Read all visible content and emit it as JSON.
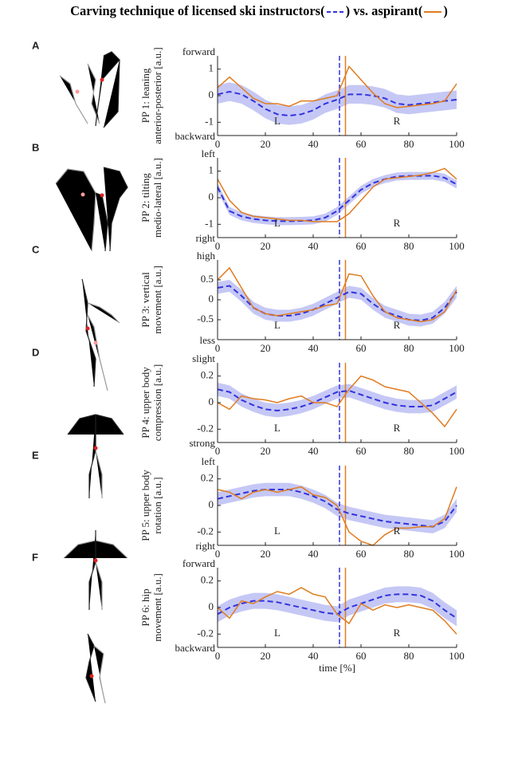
{
  "legend": {
    "prefix": "Carving technique of",
    "open": "(",
    "close": ")",
    "join": "vs.",
    "items": [
      {
        "name": "licensed ski instructors",
        "color": "#3333dd",
        "dash": true
      },
      {
        "name": "aspirant",
        "color": "#e07b1f",
        "dash": false
      }
    ]
  },
  "chart_data": [
    {
      "type": "line",
      "panel": "A",
      "ylabel": [
        "PP 1: leaning",
        "anterior-posterior [a.u.]"
      ],
      "top_label": "forward",
      "bottom_label": "backward",
      "phase_labels": [
        "L",
        "R"
      ],
      "x": [
        0,
        5,
        10,
        15,
        20,
        25,
        30,
        35,
        40,
        45,
        50,
        55,
        60,
        65,
        70,
        75,
        80,
        85,
        90,
        95,
        100
      ],
      "xlim": [
        0,
        100
      ],
      "xticks": [
        0,
        20,
        40,
        60,
        80,
        100
      ],
      "ylim": [
        -1.5,
        1.5
      ],
      "yticks": [
        -1,
        0,
        1
      ],
      "series": [
        {
          "color": "#3333dd",
          "dash": true,
          "switch": 51,
          "spread": 0.35,
          "values": [
            0.05,
            0.15,
            0.05,
            -0.2,
            -0.5,
            -0.7,
            -0.75,
            -0.7,
            -0.55,
            -0.3,
            -0.15,
            0.05,
            0.05,
            0.0,
            -0.1,
            -0.3,
            -0.35,
            -0.3,
            -0.25,
            -0.2,
            -0.15
          ]
        },
        {
          "color": "#e07b1f",
          "dash": false,
          "switch": 53.5,
          "values": [
            0.3,
            0.7,
            0.3,
            -0.1,
            -0.3,
            -0.3,
            -0.4,
            -0.2,
            -0.2,
            -0.1,
            0.0,
            1.1,
            0.6,
            0.1,
            -0.3,
            -0.45,
            -0.4,
            -0.35,
            -0.3,
            -0.2,
            0.45
          ]
        }
      ]
    },
    {
      "type": "line",
      "panel": "B",
      "ylabel": [
        "PP 2: tilting",
        "medio-lateral [a.u.]"
      ],
      "top_label": "left",
      "bottom_label": "right",
      "phase_labels": [
        "L",
        "R"
      ],
      "x": [
        0,
        5,
        10,
        15,
        20,
        25,
        30,
        35,
        40,
        45,
        50,
        55,
        60,
        65,
        70,
        75,
        80,
        85,
        90,
        95,
        100
      ],
      "xlim": [
        0,
        100
      ],
      "xticks": [
        0,
        20,
        40,
        60,
        80,
        100
      ],
      "ylim": [
        -1.5,
        1.5
      ],
      "yticks": [
        -1,
        0,
        1
      ],
      "series": [
        {
          "color": "#3333dd",
          "dash": true,
          "switch": 51,
          "spread": 0.15,
          "values": [
            0.4,
            -0.5,
            -0.7,
            -0.8,
            -0.85,
            -0.88,
            -0.88,
            -0.87,
            -0.85,
            -0.75,
            -0.5,
            -0.1,
            0.3,
            0.55,
            0.7,
            0.8,
            0.82,
            0.82,
            0.83,
            0.75,
            0.5
          ]
        },
        {
          "color": "#e07b1f",
          "dash": false,
          "switch": 53.5,
          "values": [
            0.7,
            -0.1,
            -0.55,
            -0.7,
            -0.75,
            -0.8,
            -0.85,
            -0.85,
            -0.9,
            -0.9,
            -0.9,
            -0.6,
            -0.1,
            0.4,
            0.7,
            0.75,
            0.8,
            0.85,
            0.95,
            1.1,
            0.7
          ]
        }
      ]
    },
    {
      "type": "line",
      "panel": "C",
      "ylabel": [
        "PP 3: vertical",
        "movement [a.u.]"
      ],
      "top_label": "high",
      "bottom_label": "less",
      "phase_labels": [
        "L",
        "R"
      ],
      "x": [
        0,
        5,
        10,
        15,
        20,
        25,
        30,
        35,
        40,
        45,
        50,
        55,
        60,
        65,
        70,
        75,
        80,
        85,
        90,
        95,
        100
      ],
      "xlim": [
        0,
        100
      ],
      "xticks": [
        0,
        20,
        40,
        60,
        80,
        100
      ],
      "ylim": [
        -1,
        1
      ],
      "yticks": [
        -0.5,
        0,
        0.5
      ],
      "series": [
        {
          "color": "#3333dd",
          "dash": true,
          "switch": 51,
          "spread": 0.15,
          "values": [
            0.3,
            0.35,
            0.1,
            -0.2,
            -0.35,
            -0.4,
            -0.4,
            -0.35,
            -0.25,
            -0.1,
            0.05,
            0.2,
            0.15,
            -0.1,
            -0.3,
            -0.4,
            -0.5,
            -0.52,
            -0.45,
            -0.2,
            0.2
          ]
        },
        {
          "color": "#e07b1f",
          "dash": false,
          "switch": 53.5,
          "values": [
            0.5,
            0.8,
            0.3,
            -0.2,
            -0.35,
            -0.4,
            -0.35,
            -0.3,
            -0.25,
            -0.15,
            -0.1,
            0.65,
            0.6,
            0.1,
            -0.3,
            -0.45,
            -0.5,
            -0.55,
            -0.5,
            -0.3,
            0.25
          ]
        }
      ]
    },
    {
      "type": "line",
      "panel": "D",
      "ylabel": [
        "PP 4: upper body",
        "compression [a.u.]"
      ],
      "top_label": "slight",
      "bottom_label": "strong",
      "phase_labels": [
        "L",
        "R"
      ],
      "x": [
        0,
        5,
        10,
        15,
        20,
        25,
        30,
        35,
        40,
        45,
        50,
        55,
        60,
        65,
        70,
        75,
        80,
        85,
        90,
        95,
        100
      ],
      "xlim": [
        0,
        100
      ],
      "xticks": [
        0,
        20,
        40,
        60,
        80,
        100
      ],
      "ylim": [
        -0.3,
        0.3
      ],
      "yticks": [
        -0.2,
        0,
        0.2
      ],
      "series": [
        {
          "color": "#3333dd",
          "dash": true,
          "switch": 51,
          "spread": 0.05,
          "values": [
            0.1,
            0.08,
            0.02,
            -0.02,
            -0.05,
            -0.06,
            -0.05,
            -0.03,
            0.0,
            0.04,
            0.08,
            0.09,
            0.06,
            0.03,
            0.0,
            -0.02,
            -0.03,
            -0.03,
            -0.02,
            0.03,
            0.08
          ]
        },
        {
          "color": "#e07b1f",
          "dash": false,
          "switch": 53.5,
          "values": [
            0.0,
            -0.05,
            0.05,
            0.03,
            0.02,
            0.0,
            0.03,
            0.05,
            0.0,
            0.0,
            -0.03,
            0.1,
            0.2,
            0.17,
            0.12,
            0.1,
            0.08,
            0.0,
            -0.08,
            -0.18,
            -0.05
          ]
        }
      ]
    },
    {
      "type": "line",
      "panel": "E",
      "ylabel": [
        "PP 5: upper body",
        "rotation [a.u.]"
      ],
      "top_label": "left",
      "bottom_label": "right",
      "phase_labels": [
        "L",
        "R"
      ],
      "x": [
        0,
        5,
        10,
        15,
        20,
        25,
        30,
        35,
        40,
        45,
        50,
        55,
        60,
        65,
        70,
        75,
        80,
        85,
        90,
        95,
        100
      ],
      "xlim": [
        0,
        100
      ],
      "xticks": [
        0,
        20,
        40,
        60,
        80,
        100
      ],
      "ylim": [
        -0.3,
        0.3
      ],
      "yticks": [
        -0.2,
        0,
        0.2
      ],
      "series": [
        {
          "color": "#3333dd",
          "dash": true,
          "switch": 51,
          "spread": 0.05,
          "values": [
            0.05,
            0.07,
            0.09,
            0.11,
            0.12,
            0.12,
            0.12,
            0.1,
            0.07,
            0.03,
            -0.03,
            -0.06,
            -0.08,
            -0.1,
            -0.12,
            -0.13,
            -0.14,
            -0.15,
            -0.16,
            -0.12,
            0.0
          ]
        },
        {
          "color": "#e07b1f",
          "dash": false,
          "switch": 53.5,
          "values": [
            0.12,
            0.1,
            0.05,
            0.1,
            0.12,
            0.1,
            0.12,
            0.14,
            0.08,
            0.06,
            0.0,
            -0.2,
            -0.27,
            -0.3,
            -0.22,
            -0.17,
            -0.17,
            -0.16,
            -0.16,
            -0.1,
            0.14
          ]
        }
      ]
    },
    {
      "type": "line",
      "panel": "F",
      "ylabel": [
        "PP 6: hip",
        "movement [a.u.]"
      ],
      "top_label": "forward",
      "bottom_label": "backward",
      "phase_labels": [
        "L",
        "R"
      ],
      "xlabel": "time [%]",
      "x": [
        0,
        5,
        10,
        15,
        20,
        25,
        30,
        35,
        40,
        45,
        50,
        55,
        60,
        65,
        70,
        75,
        80,
        85,
        90,
        95,
        100
      ],
      "xlim": [
        0,
        100
      ],
      "xticks": [
        0,
        20,
        40,
        60,
        80,
        100
      ],
      "ylim": [
        -0.3,
        0.3
      ],
      "yticks": [
        -0.2,
        0,
        0.2
      ],
      "series": [
        {
          "color": "#3333dd",
          "dash": true,
          "switch": 51,
          "spread": 0.06,
          "values": [
            -0.05,
            0.0,
            0.03,
            0.05,
            0.05,
            0.04,
            0.02,
            0.0,
            -0.02,
            -0.04,
            -0.05,
            0.0,
            0.03,
            0.06,
            0.09,
            0.1,
            0.1,
            0.09,
            0.05,
            -0.02,
            -0.08
          ]
        },
        {
          "color": "#e07b1f",
          "dash": false,
          "switch": 53.5,
          "values": [
            0.0,
            -0.08,
            0.05,
            0.03,
            0.08,
            0.12,
            0.1,
            0.15,
            0.1,
            0.08,
            -0.05,
            -0.12,
            0.03,
            -0.02,
            0.02,
            0.0,
            0.02,
            0.0,
            -0.02,
            -0.1,
            -0.2
          ]
        }
      ]
    }
  ]
}
